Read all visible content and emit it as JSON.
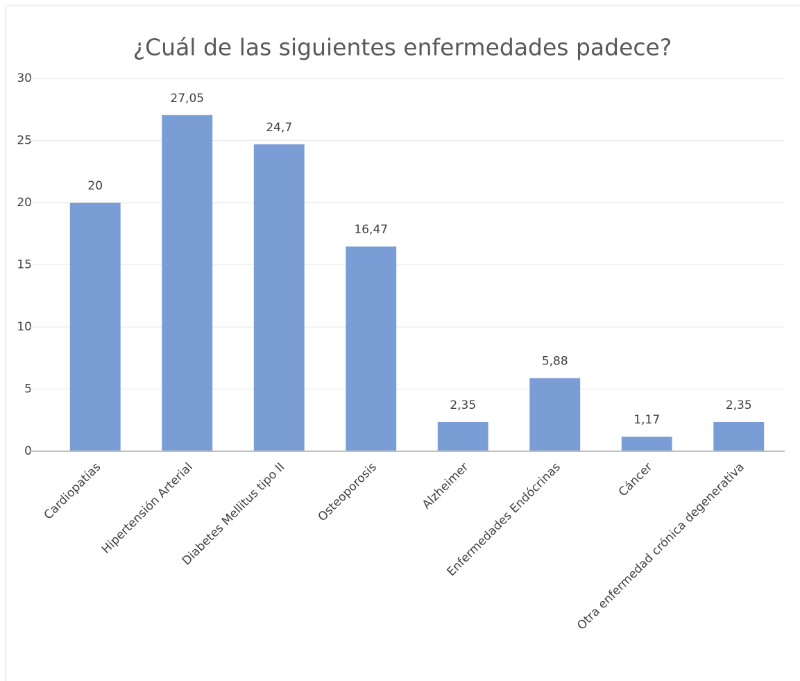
{
  "chart_data": {
    "type": "bar",
    "title": "¿Cuál de las siguientes enfermedades padece?",
    "categories": [
      "Cardiopatías",
      "Hipertensión Arterial",
      "Diabetes Mellitus tipo II",
      "Osteoporosis",
      "Alzheimer",
      "Enfermedades Endócrinas",
      "Cáncer",
      "Otra enfermedad crónica degenerativa"
    ],
    "values": [
      20,
      27.05,
      24.7,
      16.47,
      2.35,
      5.88,
      1.17,
      2.35
    ],
    "value_labels": [
      "20",
      "27,05",
      "24,7",
      "16,47",
      "2,35",
      "5,88",
      "1,17",
      "2,35"
    ],
    "color": "#7b9dd5",
    "ylim": [
      0,
      30
    ],
    "yticks": [
      0,
      5,
      10,
      15,
      20,
      25,
      30
    ],
    "grid": true
  }
}
